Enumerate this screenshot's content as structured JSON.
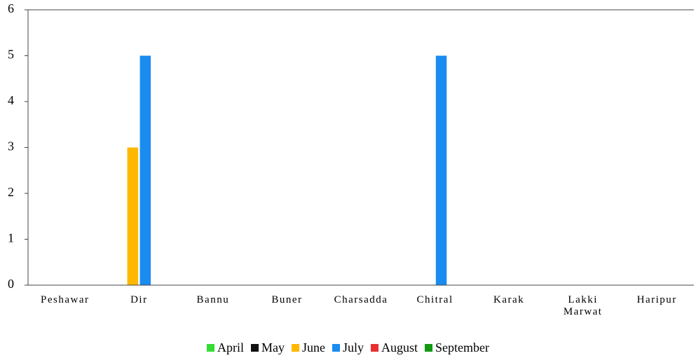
{
  "chart_data": {
    "type": "bar",
    "categories": [
      "Peshawar",
      "Dir",
      "Bannu",
      "Buner",
      "Charsadda",
      "Chitral",
      "Karak",
      "Lakki\nMarwat",
      "Haripur"
    ],
    "series": [
      {
        "name": "April",
        "color": "#33dd33",
        "values": [
          0,
          0,
          0,
          0,
          0,
          0,
          0,
          0,
          0
        ]
      },
      {
        "name": "May",
        "color": "#111111",
        "values": [
          0,
          0,
          0,
          0,
          0,
          0,
          0,
          0,
          0
        ]
      },
      {
        "name": "June",
        "color": "#ffb800",
        "values": [
          0,
          3,
          0,
          0,
          0,
          0,
          0,
          0,
          0
        ]
      },
      {
        "name": "July",
        "color": "#1a8cf0",
        "values": [
          0,
          5,
          0,
          0,
          0,
          5,
          0,
          0,
          0
        ]
      },
      {
        "name": "August",
        "color": "#e83030",
        "values": [
          0,
          0,
          0,
          0,
          0,
          0,
          0,
          0,
          0
        ]
      },
      {
        "name": "September",
        "color": "#119911",
        "values": [
          0,
          0,
          0,
          0,
          0,
          0,
          0,
          0,
          0
        ]
      }
    ],
    "ylim": [
      0,
      6
    ],
    "yticks": [
      0,
      1,
      2,
      3,
      4,
      5,
      6
    ],
    "legend": "bottom"
  }
}
